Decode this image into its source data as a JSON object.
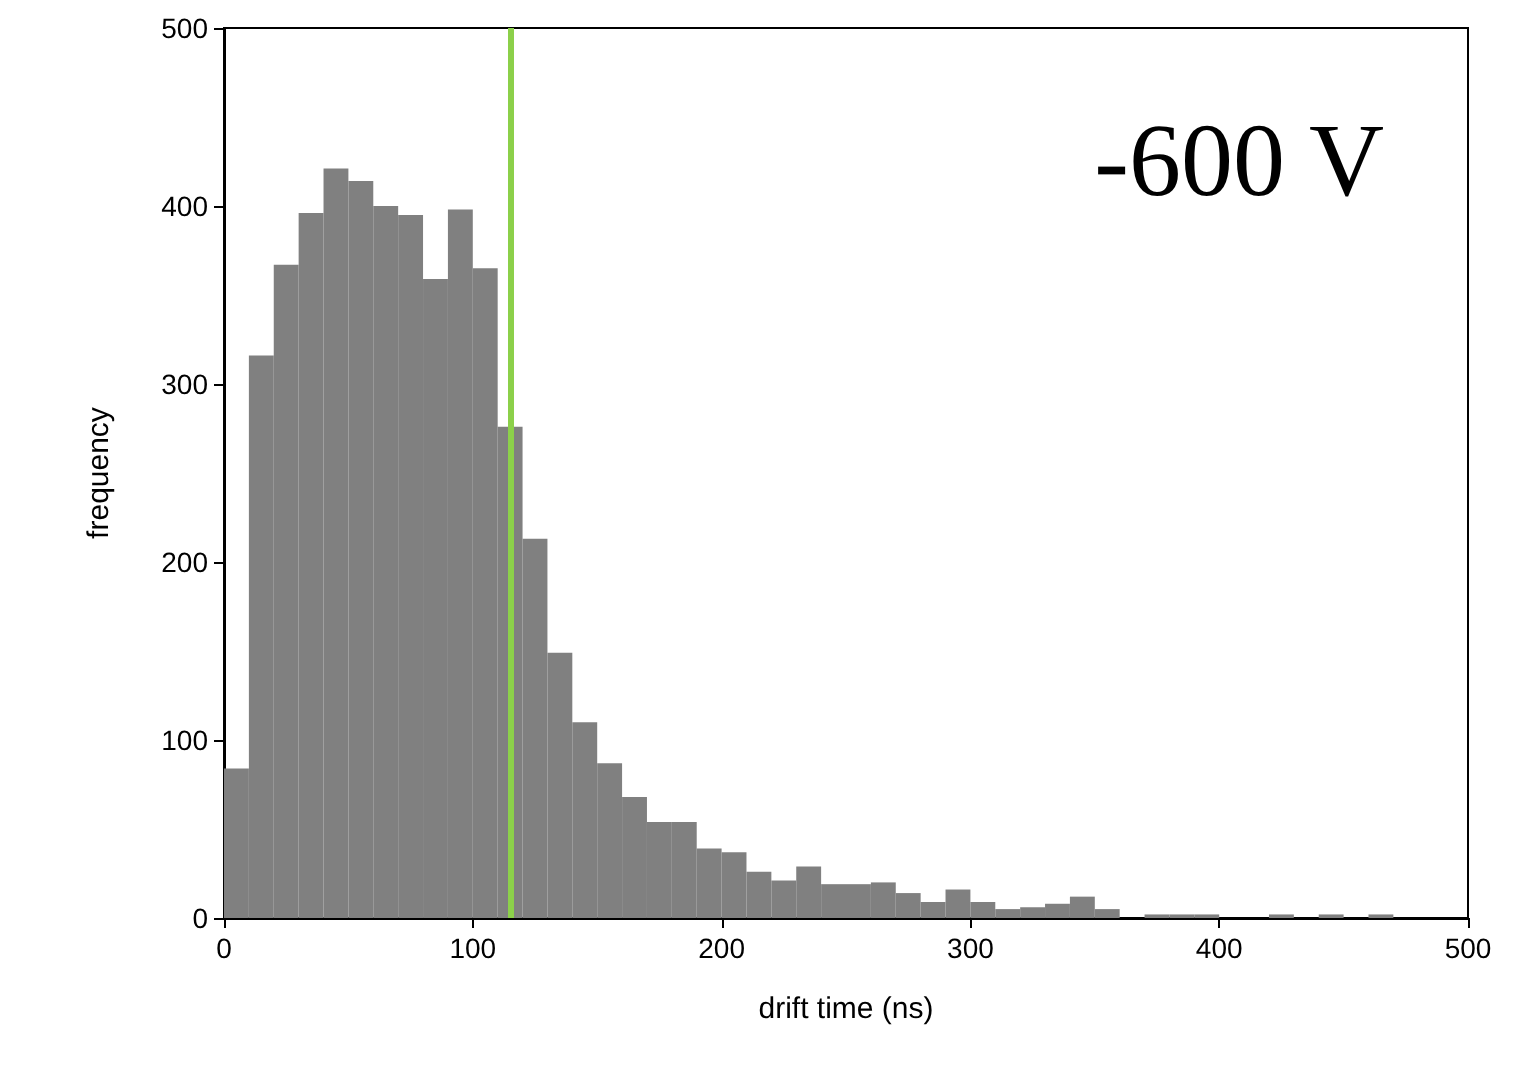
{
  "chart_data": {
    "type": "histogram",
    "xlabel": "drift time (ns)",
    "ylabel": "frequency",
    "bins": [
      0,
      10,
      20,
      30,
      40,
      50,
      60,
      70,
      80,
      90,
      100,
      110,
      120,
      130,
      140,
      150,
      160,
      170,
      180,
      190,
      200,
      210,
      220,
      230,
      240,
      250,
      260,
      270,
      280,
      290,
      300,
      310,
      320,
      330,
      340,
      350,
      360,
      370,
      380,
      390,
      400,
      410,
      420,
      430,
      440,
      450,
      460,
      470,
      480
    ],
    "values": [
      84,
      316,
      367,
      396,
      421,
      414,
      400,
      395,
      359,
      398,
      365,
      276,
      213,
      149,
      110,
      87,
      68,
      54,
      54,
      39,
      37,
      26,
      21,
      29,
      19,
      19,
      20,
      14,
      9,
      16,
      9,
      5,
      6,
      8,
      12,
      5,
      0,
      2,
      2,
      2,
      0,
      0,
      2,
      0,
      2,
      0,
      2,
      0
    ],
    "color": "#808080",
    "xlim": [
      0,
      500
    ],
    "xticks": [
      0,
      100,
      200,
      300,
      400,
      500
    ],
    "ylim": [
      0,
      500
    ],
    "yticks": [
      0,
      100,
      200,
      300,
      400,
      500
    ],
    "ref_lines": [
      {
        "axis": "x",
        "value": 115,
        "color": "#8cd04a"
      }
    ],
    "annotations": [
      "-600 V"
    ],
    "grid": false,
    "legend": false
  }
}
